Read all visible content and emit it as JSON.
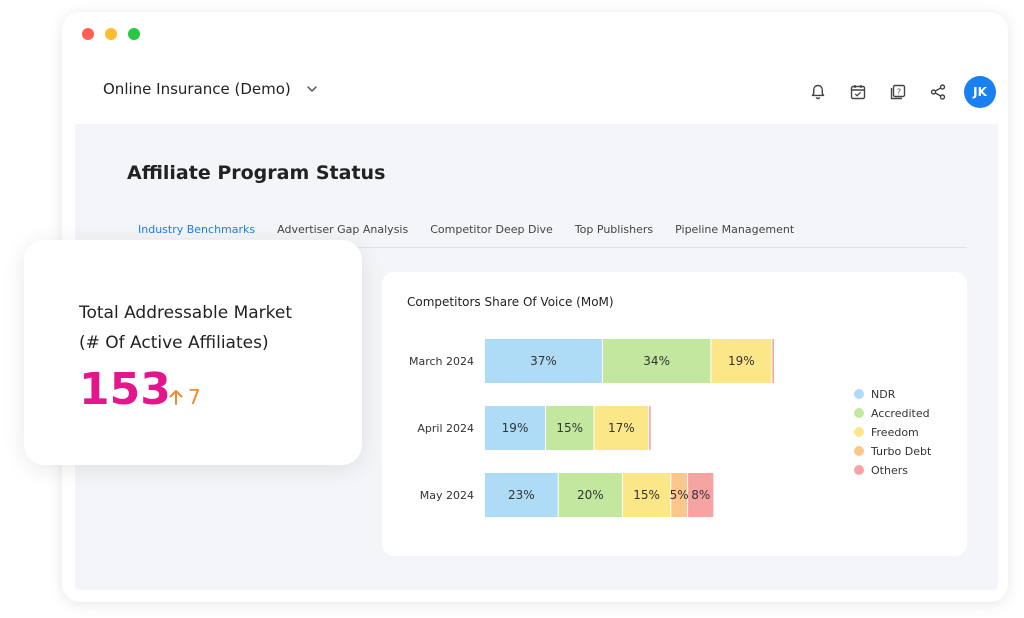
{
  "app": {
    "title": "Online Insurance (Demo)",
    "avatar_initials": "JK"
  },
  "window_dots": [
    "#ff5f57",
    "#febc2e",
    "#28c840"
  ],
  "topbar_icons": [
    "bell-icon",
    "calendar-icon",
    "help-icon",
    "share-icon"
  ],
  "page": {
    "title": "Affiliate Program Status"
  },
  "tabs": [
    {
      "label": "Industry Benchmarks",
      "active": true
    },
    {
      "label": "Advertiser Gap Analysis",
      "active": false
    },
    {
      "label": "Competitor Deep Dive",
      "active": false
    },
    {
      "label": "Top Publishers",
      "active": false
    },
    {
      "label": "Pipeline Management",
      "active": false
    }
  ],
  "tam": {
    "title_line1": "Total Addressable Market",
    "title_line2": "(# Of Active Affiliates)",
    "value": "153",
    "change": "7",
    "change_direction": "up",
    "value_color": "#e3168e",
    "change_color": "#f08a2e"
  },
  "chart_data": {
    "type": "bar",
    "orientation": "horizontal",
    "stacked": true,
    "title": "Competitors Share Of Voice (MoM)",
    "categories": [
      "March 2024",
      "April 2024",
      "May 2024"
    ],
    "series": [
      {
        "name": "NDR",
        "color": "#aedcf7",
        "values": [
          37,
          19,
          23
        ],
        "labels": [
          "37%",
          "19%",
          "23%"
        ]
      },
      {
        "name": "Accredited",
        "color": "#c2e8a0",
        "values": [
          34,
          15,
          20
        ],
        "labels": [
          "34%",
          "15%",
          "20%"
        ]
      },
      {
        "name": "Freedom",
        "color": "#fbe787",
        "values": [
          19,
          17,
          15
        ],
        "labels": [
          "19%",
          "17%",
          "15%"
        ]
      },
      {
        "name": "Turbo Debt",
        "color": "#fbc78a",
        "values": [
          0,
          0,
          5
        ],
        "labels": [
          "",
          "",
          "5%"
        ]
      },
      {
        "name": "Others",
        "color": "#f7a3a3",
        "values": [
          0.5,
          0.5,
          8
        ],
        "labels": [
          "",
          "",
          "8%"
        ]
      }
    ],
    "xlim": [
      0,
      100
    ],
    "legend_position": "right",
    "grid": false
  }
}
